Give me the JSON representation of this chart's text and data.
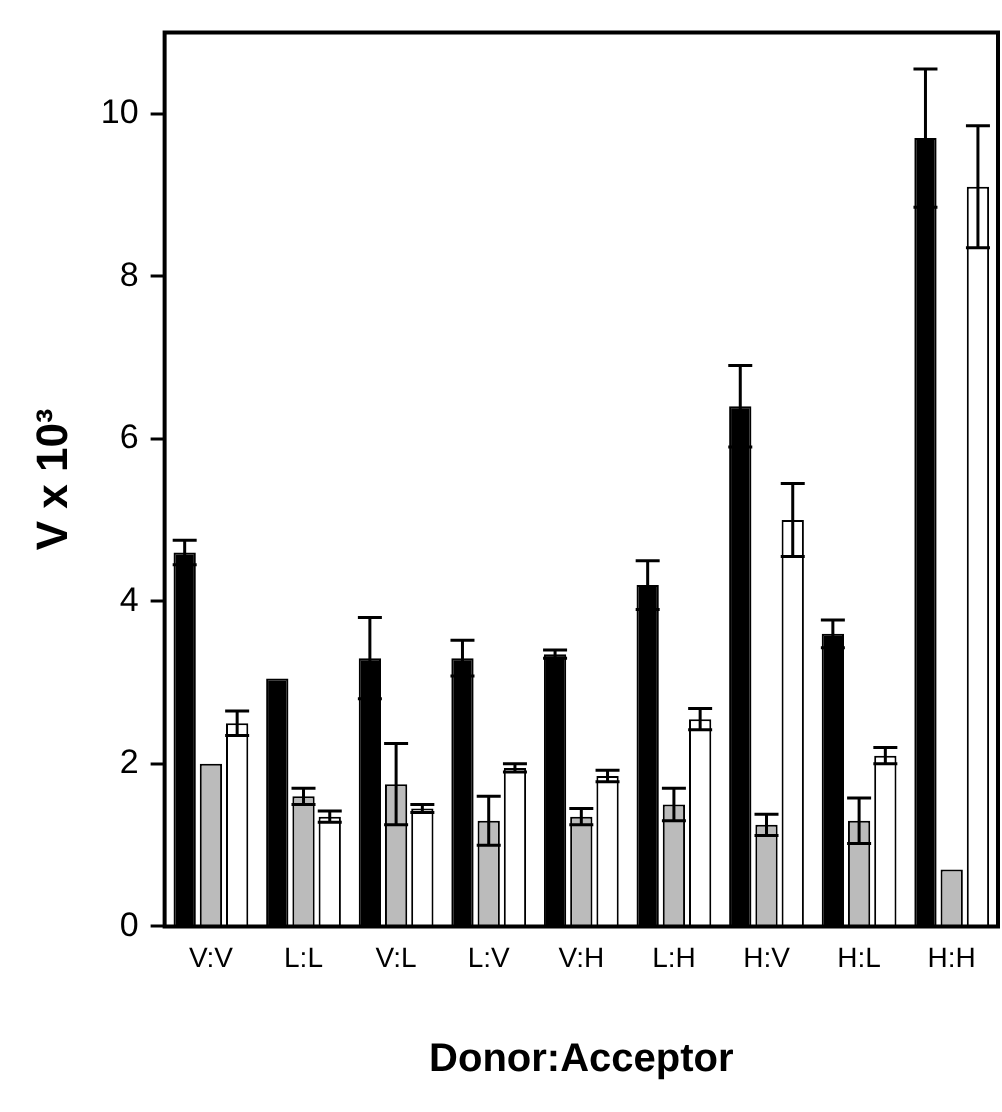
{
  "chart_data": {
    "type": "bar",
    "xlabel": "Donor:Acceptor",
    "ylabel": "V x 10³",
    "categories": [
      "V:V",
      "L:L",
      "V:L",
      "L:V",
      "V:H",
      "L:H",
      "H:V",
      "H:L",
      "H:H"
    ],
    "ylim": [
      0,
      11
    ],
    "yticks": [
      0,
      2,
      4,
      6,
      8,
      10
    ],
    "grid": false,
    "legend": false,
    "series": [
      {
        "color": "#000000",
        "values": [
          4.6,
          3.05,
          3.3,
          3.3,
          3.35,
          4.2,
          6.4,
          3.6,
          9.7
        ],
        "errors": [
          0.15,
          null,
          0.5,
          0.22,
          0.05,
          0.3,
          0.5,
          0.17,
          0.85
        ]
      },
      {
        "color": "#bbbbbb",
        "values": [
          2.0,
          1.6,
          1.75,
          1.3,
          1.35,
          1.5,
          1.25,
          1.3,
          0.7
        ],
        "errors": [
          null,
          0.1,
          0.5,
          0.3,
          0.1,
          0.2,
          0.13,
          0.28,
          null
        ]
      },
      {
        "color": "#ffffff",
        "values": [
          2.5,
          1.35,
          1.45,
          1.95,
          1.85,
          2.55,
          5.0,
          2.1,
          9.1
        ],
        "errors": [
          0.15,
          0.07,
          0.05,
          0.05,
          0.07,
          0.13,
          0.45,
          0.1,
          0.75
        ]
      }
    ]
  }
}
